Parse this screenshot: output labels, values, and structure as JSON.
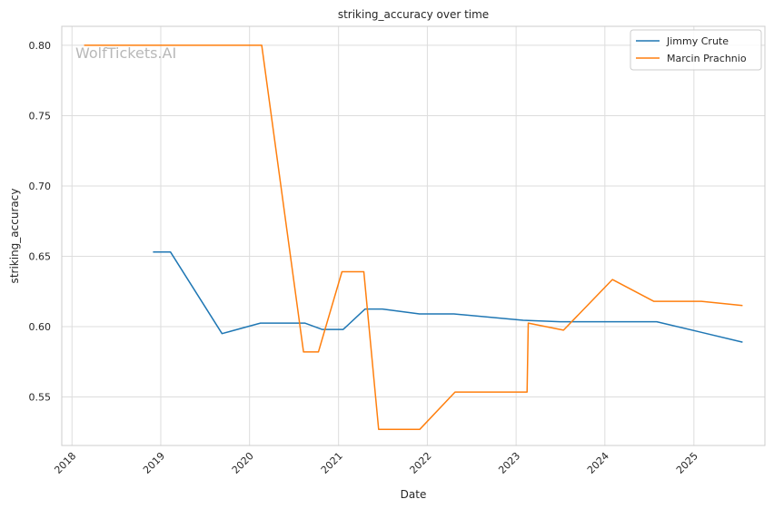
{
  "chart_data": {
    "type": "line",
    "title": "striking_accuracy over time",
    "xlabel": "Date",
    "ylabel": "striking_accuracy",
    "watermark": "WolfTickets.AI",
    "x_ticks": [
      "2018",
      "2019",
      "2020",
      "2021",
      "2022",
      "2023",
      "2024",
      "2025"
    ],
    "y_ticks": [
      "0.55",
      "0.60",
      "0.65",
      "0.70",
      "0.75",
      "0.80"
    ],
    "xlim": [
      "2017-11-20",
      "2025-10-20"
    ],
    "ylim": [
      0.5155,
      0.8135
    ],
    "grid": true,
    "legend_position": "top-right",
    "series": [
      {
        "name": "Jimmy Crute",
        "color": "#1f77b4",
        "points": [
          [
            "2018-11-30",
            0.653
          ],
          [
            "2019-02-10",
            0.653
          ],
          [
            "2019-09-10",
            0.595
          ],
          [
            "2020-02-15",
            0.6025
          ],
          [
            "2020-08-15",
            0.6025
          ],
          [
            "2020-10-25",
            0.598
          ],
          [
            "2021-01-20",
            0.598
          ],
          [
            "2021-04-20",
            0.6125
          ],
          [
            "2021-06-30",
            0.6125
          ],
          [
            "2021-11-30",
            0.609
          ],
          [
            "2022-04-20",
            0.609
          ],
          [
            "2023-01-30",
            0.6045
          ],
          [
            "2023-07-01",
            0.6035
          ],
          [
            "2024-08-01",
            0.6035
          ],
          [
            "2025-01-30",
            0.596
          ],
          [
            "2025-07-20",
            0.589
          ]
        ]
      },
      {
        "name": "Marcin Prachnio",
        "color": "#ff7f0e",
        "points": [
          [
            "2018-02-20",
            0.8
          ],
          [
            "2020-02-20",
            0.8
          ],
          [
            "2020-08-10",
            0.582
          ],
          [
            "2020-10-10",
            0.582
          ],
          [
            "2021-01-15",
            0.639
          ],
          [
            "2021-04-15",
            0.639
          ],
          [
            "2021-06-15",
            0.527
          ],
          [
            "2021-12-01",
            0.527
          ],
          [
            "2022-04-25",
            0.5535
          ],
          [
            "2023-02-15",
            0.5535
          ],
          [
            "2023-02-20",
            0.6025
          ],
          [
            "2023-07-15",
            0.5975
          ],
          [
            "2024-02-01",
            0.6335
          ],
          [
            "2024-07-20",
            0.618
          ],
          [
            "2025-02-01",
            0.618
          ],
          [
            "2025-07-20",
            0.615
          ]
        ]
      }
    ]
  }
}
